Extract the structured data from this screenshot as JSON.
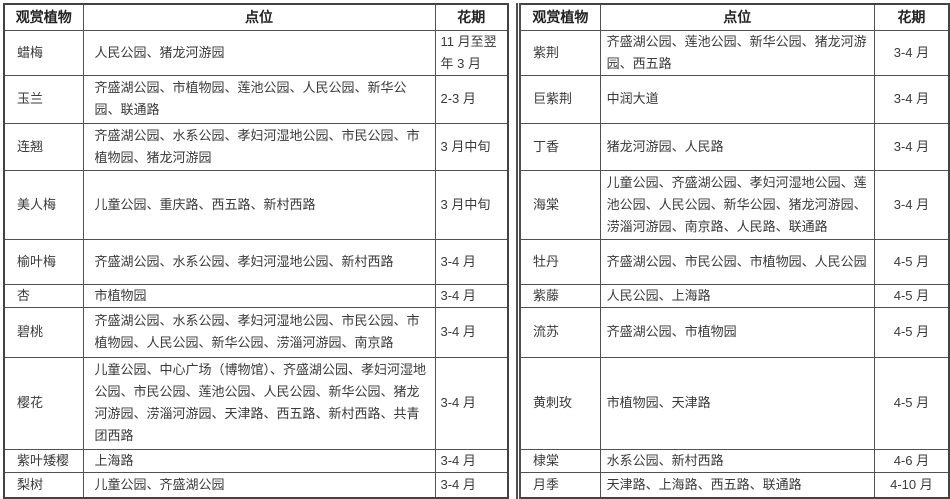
{
  "table": {
    "header": {
      "plant": "观赏植物",
      "location": "点位",
      "period": "花期"
    },
    "left_rows": [
      {
        "plant": "蜡梅",
        "location": "人民公园、猪龙河游园",
        "period": "11 月至翌年 3 月"
      },
      {
        "plant": "玉兰",
        "location": "齐盛湖公园、市植物园、莲池公园、人民公园、新华公园、联通路",
        "period": "2-3 月"
      },
      {
        "plant": "连翘",
        "location": "齐盛湖公园、水系公园、孝妇河湿地公园、市民公园、市植物园、猪龙河游园",
        "period": "3 月中旬"
      },
      {
        "plant": "美人梅",
        "location": "儿童公园、重庆路、西五路、新村西路",
        "period": "3 月中旬"
      },
      {
        "plant": "榆叶梅",
        "location": "齐盛湖公园、水系公园、孝妇河湿地公园、新村西路",
        "period": "3-4 月"
      },
      {
        "plant": "杏",
        "location": "市植物园",
        "period": "3-4 月"
      },
      {
        "plant": "碧桃",
        "location": "齐盛湖公园、水系公园、孝妇河湿地公园、市民公园、市植物园、人民公园、新华公园、涝淄河游园、南京路",
        "period": "3-4 月"
      },
      {
        "plant": "樱花",
        "location": "儿童公园、中心广场（博物馆）、齐盛湖公园、孝妇河湿地公园、市民公园、莲池公园、人民公园、新华公园、猪龙河游园、涝淄河游园、天津路、西五路、新村西路、共青团西路",
        "period": "3-4 月"
      },
      {
        "plant": "紫叶矮樱",
        "location": "上海路",
        "period": "3-4 月"
      },
      {
        "plant": "梨树",
        "location": "儿童公园、齐盛湖公园",
        "period": "3-4 月"
      }
    ],
    "right_rows": [
      {
        "plant": "紫荆",
        "location": "齐盛湖公园、莲池公园、新华公园、猪龙河游园、西五路",
        "period": "3-4 月"
      },
      {
        "plant": "巨紫荆",
        "location": "中润大道",
        "period": "3-4 月"
      },
      {
        "plant": "丁香",
        "location": "猪龙河游园、人民路",
        "period": "3-4 月"
      },
      {
        "plant": "海棠",
        "location": "儿童公园、齐盛湖公园、孝妇河湿地公园、莲池公园、人民公园、新华公园、猪龙河游园、涝淄河游园、南京路、人民路、联通路",
        "period": "3-4 月"
      },
      {
        "plant": "牡丹",
        "location": "齐盛湖公园、市民公园、市植物园、人民公园",
        "period": "4-5 月"
      },
      {
        "plant": "紫藤",
        "location": "人民公园、上海路",
        "period": "4-5 月"
      },
      {
        "plant": "流苏",
        "location": "齐盛湖公园、市植物园",
        "period": "4-5 月"
      },
      {
        "plant": "黄刺玫",
        "location": "市植物园、天津路",
        "period": "4-5 月"
      },
      {
        "plant": "棣棠",
        "location": "水系公园、新村西路",
        "period": "4-6 月"
      },
      {
        "plant": "月季",
        "location": "天津路、上海路、西五路、联通路",
        "period": "4-10 月"
      }
    ]
  }
}
